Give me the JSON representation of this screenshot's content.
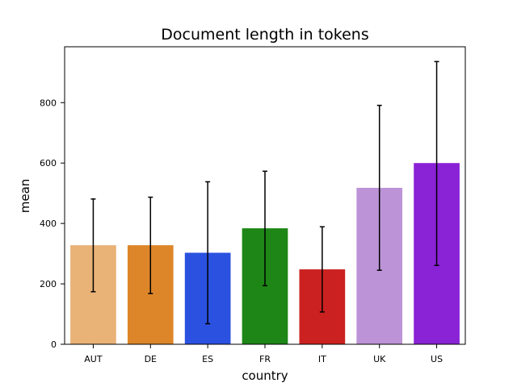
{
  "chart_data": {
    "type": "bar",
    "title": "Document length in tokens",
    "xlabel": "country",
    "ylabel": "mean",
    "categories": [
      "AUT",
      "DE",
      "ES",
      "FR",
      "IT",
      "UK",
      "US"
    ],
    "values": [
      328,
      328,
      303,
      384,
      248,
      518,
      600
    ],
    "error_low": [
      174,
      168,
      68,
      194,
      107,
      245,
      261
    ],
    "error_high": [
      481,
      487,
      538,
      573,
      389,
      791,
      936
    ],
    "colors": [
      "#e9b277",
      "#dd8629",
      "#2a51e0",
      "#1d8616",
      "#cb2121",
      "#bc93d6",
      "#8a22d6"
    ],
    "yticks": [
      0,
      200,
      400,
      600,
      800
    ],
    "ylim": [
      0,
      985
    ],
    "grid": false,
    "legend": "none"
  }
}
